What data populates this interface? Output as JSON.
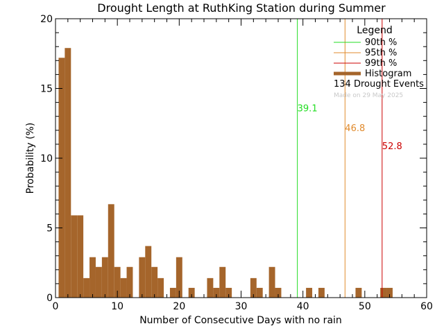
{
  "chart_data": {
    "type": "bar",
    "title": "Drought Length at RuthKing Station during Summer",
    "xlabel": "Number of Consecutive Days with no rain",
    "ylabel": "Probability (%)",
    "xlim": [
      0,
      60
    ],
    "ylim": [
      0,
      20
    ],
    "xticks": [
      "0",
      "10",
      "20",
      "30",
      "40",
      "50",
      "60"
    ],
    "yticks": [
      "0",
      "5",
      "10",
      "15",
      "20"
    ],
    "bar_color": "#a5652b",
    "histogram": [
      {
        "x": 1,
        "y": 17.2
      },
      {
        "x": 2,
        "y": 17.9
      },
      {
        "x": 3,
        "y": 5.9
      },
      {
        "x": 4,
        "y": 5.9
      },
      {
        "x": 5,
        "y": 1.4
      },
      {
        "x": 6,
        "y": 2.9
      },
      {
        "x": 7,
        "y": 2.2
      },
      {
        "x": 8,
        "y": 2.9
      },
      {
        "x": 9,
        "y": 6.7
      },
      {
        "x": 10,
        "y": 2.2
      },
      {
        "x": 11,
        "y": 1.4
      },
      {
        "x": 12,
        "y": 2.2
      },
      {
        "x": 14,
        "y": 2.9
      },
      {
        "x": 15,
        "y": 3.7
      },
      {
        "x": 16,
        "y": 2.2
      },
      {
        "x": 17,
        "y": 1.4
      },
      {
        "x": 19,
        "y": 0.7
      },
      {
        "x": 20,
        "y": 2.9
      },
      {
        "x": 22,
        "y": 0.7
      },
      {
        "x": 25,
        "y": 1.4
      },
      {
        "x": 26,
        "y": 0.7
      },
      {
        "x": 27,
        "y": 2.2
      },
      {
        "x": 28,
        "y": 0.7
      },
      {
        "x": 32,
        "y": 1.4
      },
      {
        "x": 33,
        "y": 0.7
      },
      {
        "x": 35,
        "y": 2.2
      },
      {
        "x": 36,
        "y": 0.7
      },
      {
        "x": 41,
        "y": 0.7
      },
      {
        "x": 43,
        "y": 0.7
      },
      {
        "x": 49,
        "y": 0.7
      },
      {
        "x": 53,
        "y": 0.7
      },
      {
        "x": 54,
        "y": 0.7
      }
    ],
    "percentiles": [
      {
        "name": "90th %",
        "value": 39.1,
        "label": "39.1",
        "color": "#22dd22",
        "label_y": 13.6
      },
      {
        "name": "95th %",
        "value": 46.8,
        "label": "46.8",
        "color": "#e08a2c",
        "label_y": 12.2
      },
      {
        "name": "99th %",
        "value": 52.8,
        "label": "52.8",
        "color": "#cc0000",
        "label_y": 10.9
      }
    ],
    "legend": {
      "title": "Legend",
      "histogram_label": "Histogram",
      "events": "134 Drought Events",
      "credit": "Made on 29 May 2025",
      "placement": "top-right"
    }
  }
}
